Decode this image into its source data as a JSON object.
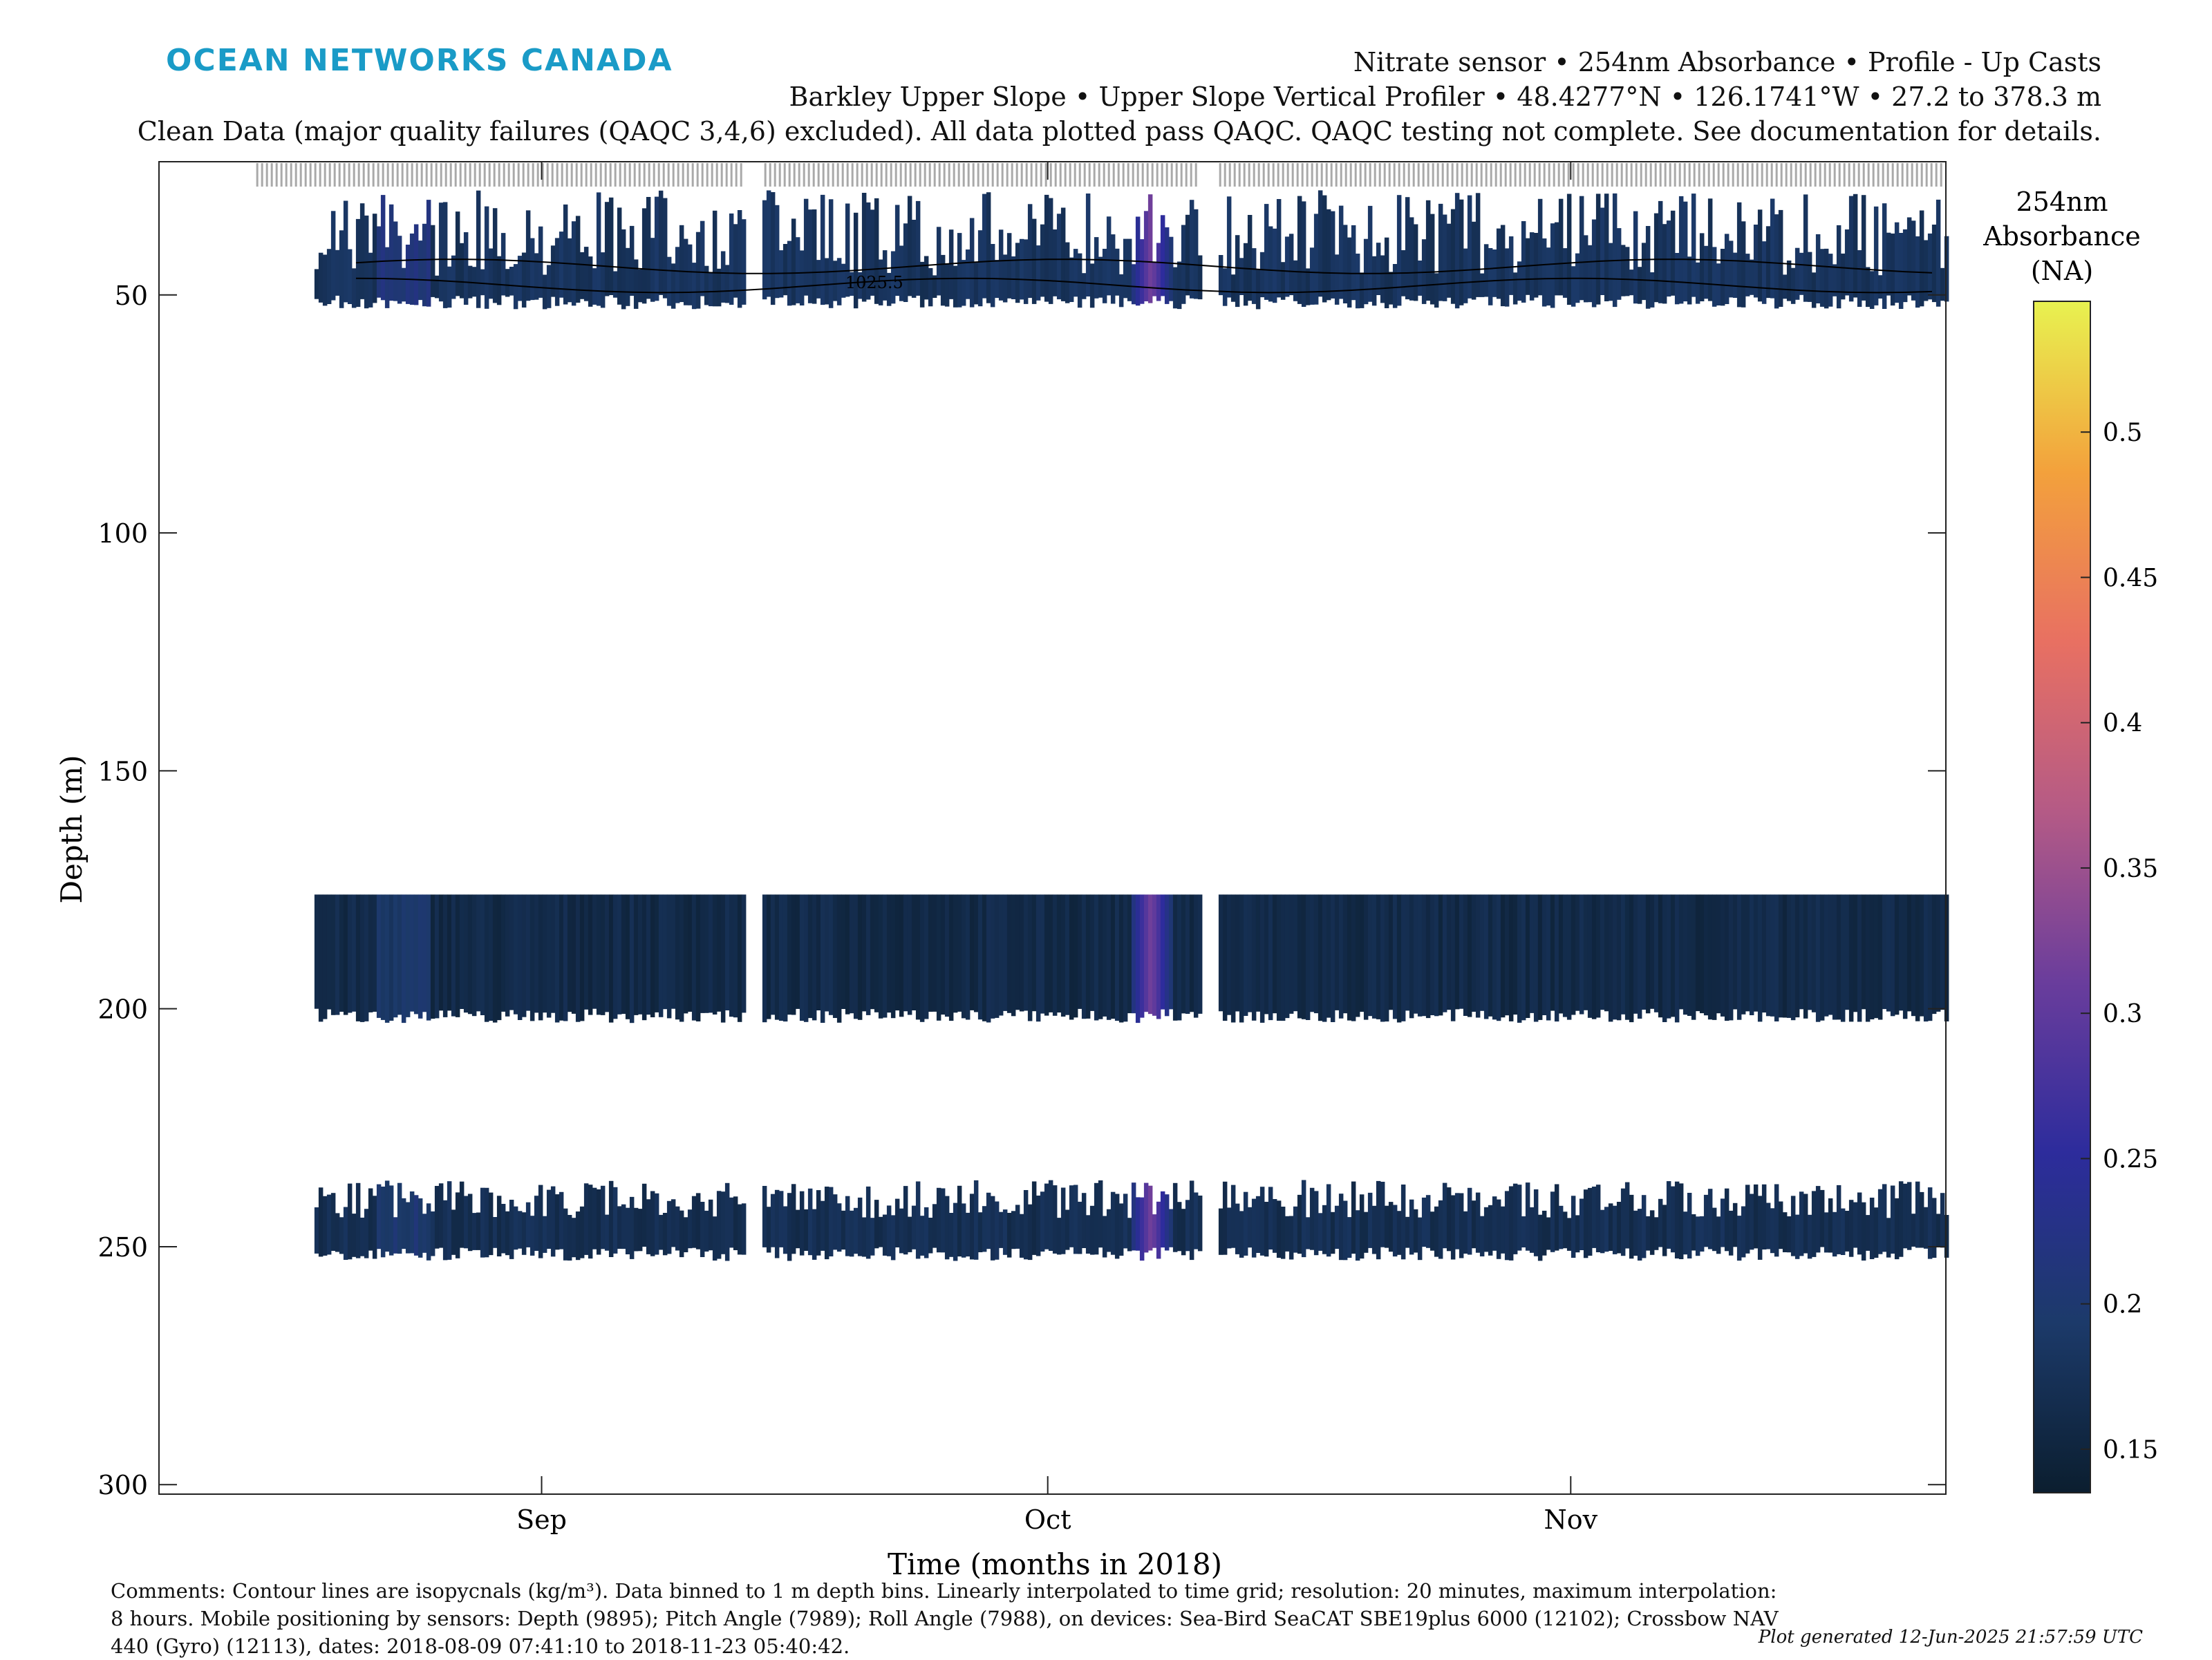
{
  "header": {
    "logo_text": "OCEAN NETWORKS CANADA",
    "line1": "Nitrate sensor • 254nm Absorbance • Profile - Up Casts",
    "line2": "Barkley Upper Slope • Upper Slope Vertical Profiler • 48.4277°N • 126.1741°W • 27.2 to 378.3 m",
    "line3": "Clean Data (major quality failures (QAQC 3,4,6) excluded). All data plotted pass QAQC. QAQC testing not complete. See documentation for details."
  },
  "chart_data": {
    "type": "heatmap",
    "xlabel": "Time (months in 2018)",
    "ylabel": "Depth (m)",
    "x_range": [
      "2018-08-09",
      "2018-11-23"
    ],
    "x_ticks": [
      {
        "date": "2018-09-01",
        "label": "Sep"
      },
      {
        "date": "2018-10-01",
        "label": "Oct"
      },
      {
        "date": "2018-11-01",
        "label": "Nov"
      }
    ],
    "ylim": [
      22,
      302
    ],
    "y_reversed": true,
    "y_ticks": [
      50,
      100,
      150,
      200,
      250,
      300
    ],
    "colorbar": {
      "label_lines": [
        "254nm",
        "Absorbance",
        "(NA)"
      ],
      "range": [
        0.135,
        0.545
      ],
      "ticks": [
        0.15,
        0.2,
        0.25,
        0.3,
        0.35,
        0.4,
        0.45,
        0.5
      ],
      "colormap": [
        "#0b1e2f",
        "#1c3a6a",
        "#2d2c9c",
        "#6a3d9c",
        "#b45a86",
        "#e87062",
        "#f3a13c",
        "#e8f250"
      ]
    },
    "bands": [
      {
        "depth_top": 28,
        "depth_bottom": 50,
        "typical_value": 0.18
      },
      {
        "depth_top": 176,
        "depth_bottom": 200,
        "typical_value": 0.16
      },
      {
        "depth_top": 236,
        "depth_bottom": 250,
        "typical_value": 0.17
      }
    ],
    "data_gaps": [
      [
        "2018-09-13",
        "2018-09-14"
      ],
      [
        "2018-10-10",
        "2018-10-11"
      ]
    ],
    "high_value_feature": {
      "date": "2018-10-07",
      "value": 0.32
    },
    "contour_label": "1025.5"
  },
  "footer": {
    "comments": "Comments: Contour lines are isopycnals (kg/m³). Data binned to 1 m depth bins. Linearly interpolated to time grid; resolution: 20 minutes, maximum interpolation: 8 hours. Mobile positioning by sensors: Depth (9895); Pitch Angle (7989); Roll Angle (7988), on devices: Sea-Bird SeaCAT SBE19plus 6000 (12102); Crossbow NAV 440 (Gyro) (12113), dates: 2018-08-09 07:41:10 to 2018-11-23 05:40:42.",
    "generated": "Plot generated 12-Jun-2025 21:57:59 UTC"
  }
}
